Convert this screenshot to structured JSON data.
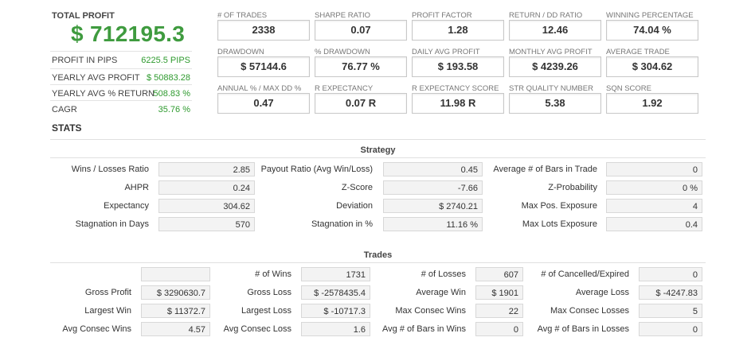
{
  "summary": {
    "total_profit_label": "TOTAL PROFIT",
    "total_profit_value": "$ 712195.3",
    "rows": [
      {
        "label": "PROFIT IN PIPS",
        "value": "6225.5 PIPS"
      },
      {
        "label": "YEARLY AVG PROFIT",
        "value": "$ 50883.28"
      },
      {
        "label": "YEARLY AVG % RETURN",
        "value": "508.83 %"
      },
      {
        "label": "CAGR",
        "value": "35.76 %"
      }
    ]
  },
  "metrics": [
    {
      "label": "# OF TRADES",
      "value": "2338"
    },
    {
      "label": "SHARPE RATIO",
      "value": "0.07"
    },
    {
      "label": "PROFIT FACTOR",
      "value": "1.28"
    },
    {
      "label": "RETURN / DD RATIO",
      "value": "12.46"
    },
    {
      "label": "WINNING PERCENTAGE",
      "value": "74.04 %"
    },
    {
      "label": "DRAWDOWN",
      "value": "$ 57144.6"
    },
    {
      "label": "% DRAWDOWN",
      "value": "76.77 %"
    },
    {
      "label": "DAILY AVG PROFIT",
      "value": "$ 193.58"
    },
    {
      "label": "MONTHLY AVG PROFIT",
      "value": "$ 4239.26"
    },
    {
      "label": "AVERAGE TRADE",
      "value": "$ 304.62"
    },
    {
      "label": "ANNUAL % / MAX DD %",
      "value": "0.47"
    },
    {
      "label": "R EXPECTANCY",
      "value": "0.07 R"
    },
    {
      "label": "R EXPECTANCY SCORE",
      "value": "11.98 R"
    },
    {
      "label": "STR QUALITY NUMBER",
      "value": "5.38"
    },
    {
      "label": "SQN SCORE",
      "value": "1.92"
    }
  ],
  "stats_title": "STATS",
  "strategy": {
    "title": "Strategy",
    "rows": [
      [
        {
          "label": "Wins / Losses Ratio",
          "value": "2.85"
        },
        {
          "label": "Payout Ratio (Avg Win/Loss)",
          "value": "0.45"
        },
        {
          "label": "Average # of Bars in Trade",
          "value": "0"
        }
      ],
      [
        {
          "label": "AHPR",
          "value": "0.24"
        },
        {
          "label": "Z-Score",
          "value": "-7.66"
        },
        {
          "label": "Z-Probability",
          "value": "0 %"
        }
      ],
      [
        {
          "label": "Expectancy",
          "value": "304.62"
        },
        {
          "label": "Deviation",
          "value": "$ 2740.21"
        },
        {
          "label": "Max Pos. Exposure",
          "value": "4"
        }
      ],
      [
        {
          "label": "Stagnation in Days",
          "value": "570"
        },
        {
          "label": "Stagnation in %",
          "value": "11.16 %"
        },
        {
          "label": "Max Lots Exposure",
          "value": "0.4"
        }
      ]
    ]
  },
  "trades": {
    "title": "Trades",
    "rows": [
      [
        {
          "label": "",
          "value": ""
        },
        {
          "label": "# of Wins",
          "value": "1731"
        },
        {
          "label": "# of Losses",
          "value": "607"
        },
        {
          "label": "# of Cancelled/Expired",
          "value": "0"
        }
      ],
      [
        {
          "label": "Gross Profit",
          "value": "$ 3290630.7"
        },
        {
          "label": "Gross Loss",
          "value": "$ -2578435.4"
        },
        {
          "label": "Average Win",
          "value": "$ 1901"
        },
        {
          "label": "Average Loss",
          "value": "$ -4247.83"
        }
      ],
      [
        {
          "label": "Largest Win",
          "value": "$ 11372.7"
        },
        {
          "label": "Largest Loss",
          "value": "$ -10717.3"
        },
        {
          "label": "Max Consec Wins",
          "value": "22"
        },
        {
          "label": "Max Consec Losses",
          "value": "5"
        }
      ],
      [
        {
          "label": "Avg Consec Wins",
          "value": "4.57"
        },
        {
          "label": "Avg Consec Loss",
          "value": "1.6"
        },
        {
          "label": "Avg # of Bars in Wins",
          "value": "0"
        },
        {
          "label": "Avg # of Bars in Losses",
          "value": "0"
        }
      ]
    ]
  }
}
